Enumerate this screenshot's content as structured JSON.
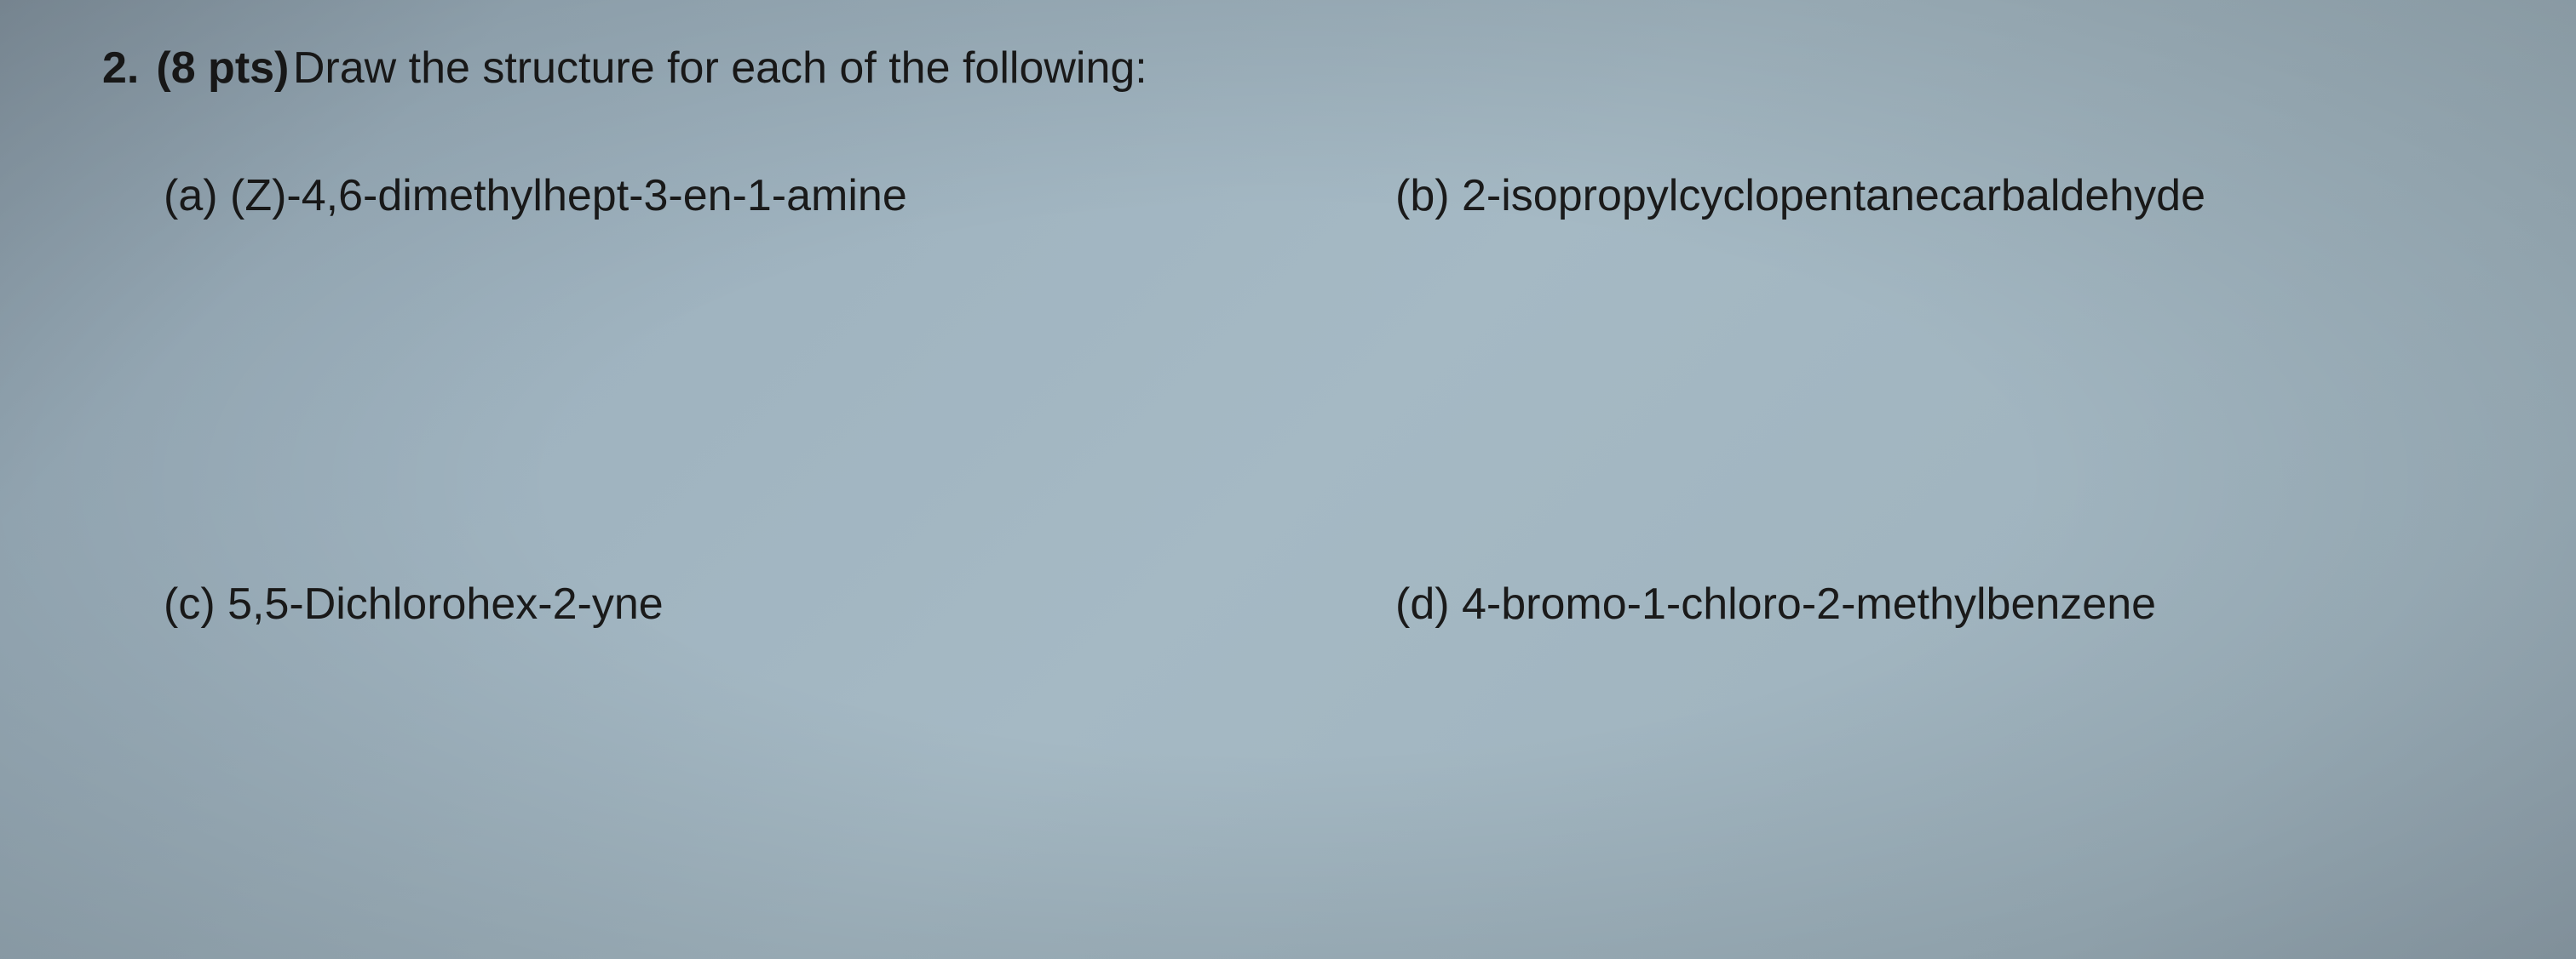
{
  "question": {
    "number": "2.",
    "points": "(8 pts)",
    "prompt": "Draw the structure for each of the following:"
  },
  "parts": {
    "a": {
      "label": "(a)",
      "text": "(Z)-4,6-dimethylhept-3-en-1-amine"
    },
    "b": {
      "label": "(b)",
      "text": "2-isopropylcyclopentanecarbaldehyde"
    },
    "c": {
      "label": "(c)",
      "text": "5,5-Dichlorohex-2-yne"
    },
    "d": {
      "label": "(d)",
      "text": "4-bromo-1-chloro-2-methylbenzene"
    }
  },
  "styling": {
    "background_gradient_start": "#8a9ba8",
    "background_gradient_mid": "#a5b9c4",
    "background_gradient_end": "#96a8b4",
    "text_color": "#1a1a1a",
    "font_family": "Arial, Helvetica, sans-serif",
    "question_fontsize": 52,
    "part_fontsize": 52,
    "bold_weight": "bold"
  }
}
